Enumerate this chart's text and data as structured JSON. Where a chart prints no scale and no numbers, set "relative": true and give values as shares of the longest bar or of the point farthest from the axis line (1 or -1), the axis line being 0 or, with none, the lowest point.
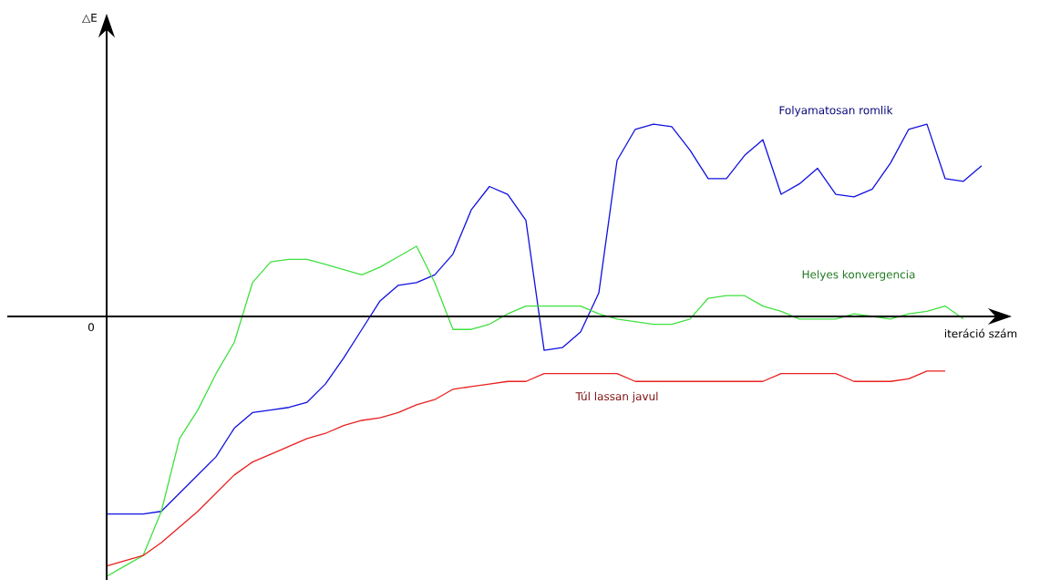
{
  "chart_data": {
    "type": "line",
    "relative": true,
    "xlabel": "iteráció szám",
    "annotations": [
      "△E",
      "0"
    ],
    "categories": [
      null,
      null,
      null,
      null,
      null,
      null,
      null,
      null,
      null,
      null,
      null,
      null,
      null,
      null,
      null,
      null,
      null,
      null,
      null,
      null,
      null,
      null,
      null,
      null,
      null,
      null,
      null,
      null,
      null,
      null,
      null,
      null,
      null,
      null,
      null,
      null,
      null,
      null,
      null,
      null,
      null,
      null,
      null,
      null,
      null,
      null,
      null,
      null,
      null
    ],
    "series": [
      {
        "name": "Folyamatosan romlik",
        "color": "#1010e0",
        "values": [
          -0.76,
          -0.76,
          -0.76,
          -0.75,
          -0.68,
          -0.61,
          -0.54,
          -0.43,
          -0.37,
          -0.36,
          -0.35,
          -0.33,
          -0.26,
          -0.16,
          -0.05,
          0.06,
          0.12,
          0.13,
          0.16,
          0.24,
          0.41,
          0.5,
          0.47,
          0.37,
          -0.13,
          -0.12,
          -0.06,
          0.09,
          0.6,
          0.72,
          0.74,
          0.73,
          0.64,
          0.53,
          0.53,
          0.62,
          0.68,
          0.47,
          0.51,
          0.57,
          0.47,
          0.46,
          0.49,
          0.59,
          0.72,
          0.74,
          0.53,
          0.52,
          0.58
        ]
      },
      {
        "name": "Helyes konvergencia",
        "color": "#40e040",
        "values": [
          -1,
          -0.96,
          -0.92,
          -0.75,
          -0.47,
          -0.36,
          -0.22,
          -0.1,
          0.13,
          0.21,
          0.22,
          0.22,
          0.2,
          0.18,
          0.16,
          0.19,
          0.23,
          0.27,
          0.13,
          -0.05,
          -0.05,
          -0.03,
          0.01,
          0.04,
          0.04,
          0.04,
          0.04,
          0.01,
          -0.01,
          -0.02,
          -0.03,
          -0.03,
          -0.01,
          0.07,
          0.08,
          0.08,
          0.04,
          0.02,
          -0.01,
          -0.01,
          -0.01,
          0.01,
          0,
          -0.01,
          0.01,
          0.02,
          0.04,
          -0.01,
          null
        ]
      },
      {
        "name": "Túl lassan javul",
        "color": "#e82020",
        "values": [
          -0.96,
          -0.94,
          -0.92,
          -0.87,
          -0.81,
          -0.75,
          -0.68,
          -0.61,
          -0.56,
          -0.53,
          -0.5,
          -0.47,
          -0.45,
          -0.42,
          -0.4,
          -0.39,
          -0.37,
          -0.34,
          -0.32,
          -0.28,
          -0.27,
          -0.26,
          -0.25,
          -0.25,
          -0.22,
          -0.22,
          -0.22,
          -0.22,
          -0.22,
          -0.25,
          -0.25,
          -0.25,
          -0.25,
          -0.25,
          -0.25,
          -0.25,
          -0.25,
          -0.22,
          -0.22,
          -0.22,
          -0.22,
          -0.25,
          -0.25,
          -0.25,
          -0.24,
          -0.21,
          -0.21,
          null,
          null
        ]
      }
    ]
  }
}
